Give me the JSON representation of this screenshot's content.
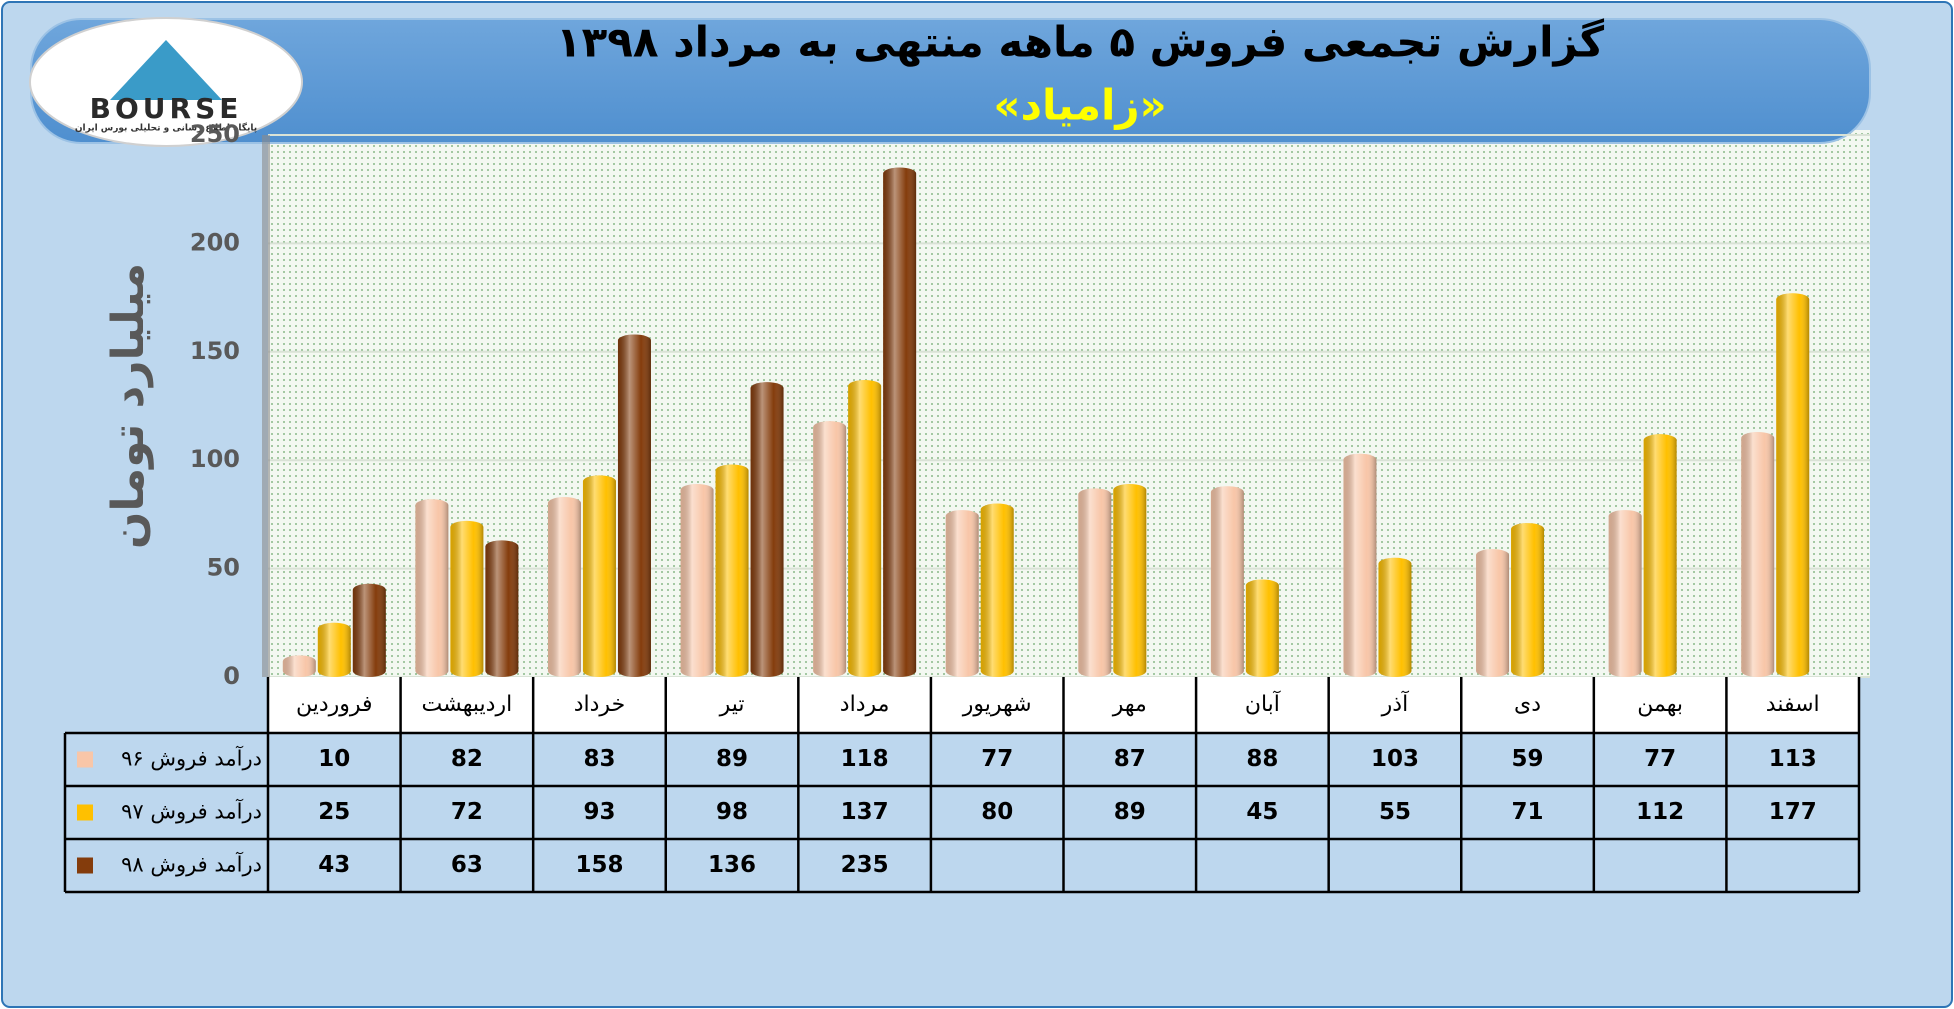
{
  "logo": {
    "name": "BOURSE",
    "tagline": "پایگاه اطلاع رسانی و تحلیلی بورس ایران"
  },
  "chart_data": {
    "type": "bar",
    "title": "گزارش تجمعی فروش ۵ ماهه منتهی به مرداد ۱۳۹۸",
    "subtitle": "«زامیاد»",
    "y_label": "میلیارد تومان",
    "categories": [
      "فروردین",
      "اردیبهشت",
      "خرداد",
      "تیر",
      "مرداد",
      "شهریور",
      "مهر",
      "آبان",
      "آذر",
      "دی",
      "بهمن",
      "اسفند"
    ],
    "series": [
      {
        "name": "درآمد فروش ۹۶",
        "color": "#f8c6a8",
        "values": [
          10,
          82,
          83,
          89,
          118,
          77,
          87,
          88,
          103,
          59,
          77,
          113
        ]
      },
      {
        "name": "درآمد فروش ۹۷",
        "color": "#ffc000",
        "values": [
          25,
          72,
          93,
          98,
          137,
          80,
          89,
          45,
          55,
          71,
          112,
          177
        ]
      },
      {
        "name": "درآمد فروش ۹۸",
        "color": "#843c0c",
        "values": [
          43,
          63,
          158,
          136,
          235,
          null,
          null,
          null,
          null,
          null,
          null,
          null
        ]
      }
    ],
    "ylim": [
      0,
      250
    ],
    "yticks": [
      0,
      50,
      100,
      150,
      200,
      250
    ],
    "grid": true
  }
}
